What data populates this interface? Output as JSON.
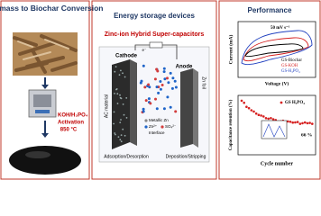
{
  "left": {
    "title": "Biomass to Biochar Conversion",
    "activation_agent": "KOH/H₃PO₄",
    "activation": "Activation",
    "temperature": "850 °C"
  },
  "middle": {
    "title": "Energy storage devices",
    "subtitle": "Zinc-ion Hybrid Super-capacitors",
    "cathode": "Cathode",
    "anode": "Anode",
    "cathode_material": "AC material",
    "anode_material": "Zn foil",
    "electron": "e⁻",
    "legend": [
      "Metallic Zn",
      "Zn²⁺",
      "SO₄²⁻",
      "Interface"
    ],
    "cathode_process": "Adsorption/Desorption",
    "anode_process": "Deposition/Stripping"
  },
  "right": {
    "title": "Performance",
    "cv": {
      "scan_rate": "50 mV s⁻¹",
      "legend": [
        "GS-Biochar",
        "GS-KOH",
        "GS-H₃PO₄"
      ],
      "ylabel": "Current (mA)",
      "xlabel": "Voltage (V)"
    },
    "cycling": {
      "ylabel": "Capacitance retention (%)",
      "legend": "GS H₃PO₄",
      "retention": "66 %",
      "xlabel": "Cycle number"
    }
  }
}
